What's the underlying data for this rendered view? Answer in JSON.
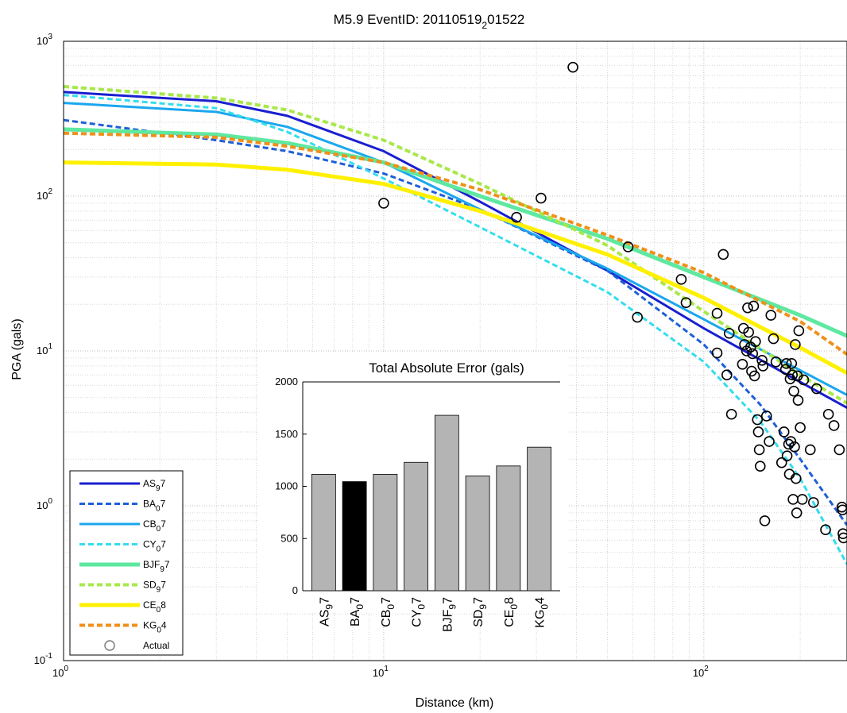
{
  "chart_data": [
    {
      "type": "line",
      "title": "M5.9 EventID: 20110519_2 01522",
      "title_main": "M5.9 EventID: 20110519",
      "title_sub": "2",
      "title_rest": "01522",
      "xlabel": "Distance (km)",
      "ylabel": "PGA (gals)",
      "xscale": "log",
      "yscale": "log",
      "xlim": [
        1,
        280
      ],
      "ylim": [
        0.1,
        1000
      ],
      "x_ticks": [
        {
          "base": "10",
          "exp": "0",
          "value": 1
        },
        {
          "base": "10",
          "exp": "1",
          "value": 10
        },
        {
          "base": "10",
          "exp": "2",
          "value": 100
        }
      ],
      "y_ticks": [
        {
          "base": "10",
          "exp": "-1",
          "value": 0.1
        },
        {
          "base": "10",
          "exp": "0",
          "value": 1
        },
        {
          "base": "10",
          "exp": "1",
          "value": 10
        },
        {
          "base": "10",
          "exp": "2",
          "value": 100
        },
        {
          "base": "10",
          "exp": "3",
          "value": 1000
        }
      ],
      "grid": true,
      "legend_position": "bottom-left",
      "series": [
        {
          "main": "AS",
          "sub": "9",
          "tail": "7",
          "color": "#1a1fd0",
          "dash": "solid",
          "width": 3,
          "x": [
            1,
            3,
            5,
            10,
            20,
            50,
            100,
            200,
            280
          ],
          "y": [
            470,
            410,
            330,
            195,
            92,
            33,
            14,
            6.3,
            4.3
          ]
        },
        {
          "main": "BA",
          "sub": "0",
          "tail": "7",
          "color": "#1e5fd8",
          "dash": "dash",
          "width": 3,
          "x": [
            1,
            3,
            5,
            10,
            20,
            50,
            100,
            150,
            200,
            280
          ],
          "y": [
            310,
            230,
            195,
            140,
            82,
            33,
            11,
            4.5,
            2.0,
            0.75
          ]
        },
        {
          "main": "CB",
          "sub": "0",
          "tail": "7",
          "color": "#1aa7ee",
          "dash": "solid",
          "width": 3,
          "x": [
            1,
            3,
            5,
            10,
            20,
            50,
            100,
            200,
            280
          ],
          "y": [
            400,
            350,
            280,
            165,
            82,
            34,
            16,
            7.5,
            5.2
          ]
        },
        {
          "main": "CY",
          "sub": "0",
          "tail": "7",
          "color": "#33ddee",
          "dash": "dash",
          "width": 3,
          "x": [
            1,
            3,
            5,
            10,
            20,
            50,
            100,
            150,
            200,
            280
          ],
          "y": [
            450,
            370,
            260,
            130,
            63,
            24,
            8.5,
            3.5,
            1.5,
            0.42
          ]
        },
        {
          "main": "BJF",
          "sub": "9",
          "tail": "7",
          "color": "#5ee8a0",
          "dash": "solid",
          "width": 5,
          "x": [
            1,
            3,
            5,
            10,
            20,
            50,
            100,
            200,
            280
          ],
          "y": [
            270,
            250,
            220,
            165,
            100,
            53,
            30,
            17,
            12.5
          ]
        },
        {
          "main": "SD",
          "sub": "9",
          "tail": "7",
          "color": "#a8e84a",
          "dash": "dash",
          "width": 4,
          "x": [
            1,
            3,
            5,
            10,
            20,
            50,
            100,
            200,
            280
          ],
          "y": [
            510,
            430,
            360,
            230,
            120,
            48,
            18,
            7.0,
            4.6
          ]
        },
        {
          "main": "CE",
          "sub": "0",
          "tail": "8",
          "color": "#fff000",
          "dash": "solid",
          "width": 5,
          "x": [
            1,
            3,
            5,
            10,
            20,
            50,
            100,
            200,
            280
          ],
          "y": [
            165,
            160,
            148,
            120,
            80,
            42,
            22,
            10.5,
            7.2
          ]
        },
        {
          "main": "KG",
          "sub": "0",
          "tail": "4",
          "color": "#f0901a",
          "dash": "dash",
          "width": 4,
          "x": [
            1,
            3,
            5,
            10,
            20,
            50,
            100,
            200,
            280
          ],
          "y": [
            255,
            240,
            210,
            165,
            110,
            56,
            32,
            15.5,
            9.5
          ]
        }
      ],
      "actual_label": "Actual",
      "actual_points": [
        [
          10.0,
          90
        ],
        [
          26,
          73
        ],
        [
          31,
          97
        ],
        [
          39,
          680
        ],
        [
          58,
          47
        ],
        [
          62,
          16.5
        ],
        [
          85,
          29
        ],
        [
          88,
          20.5
        ],
        [
          110,
          17.5
        ],
        [
          110,
          9.7
        ],
        [
          115,
          42
        ],
        [
          118,
          7
        ],
        [
          120,
          13
        ],
        [
          122,
          3.9
        ],
        [
          132,
          8.2
        ],
        [
          133,
          14
        ],
        [
          134,
          11
        ],
        [
          136,
          10
        ],
        [
          137,
          19
        ],
        [
          138,
          13.2
        ],
        [
          140,
          10.6
        ],
        [
          141,
          7.4
        ],
        [
          142,
          9.6
        ],
        [
          143,
          19.5
        ],
        [
          144,
          6.9
        ],
        [
          145,
          11.5
        ],
        [
          147,
          3.6
        ],
        [
          148,
          3.0
        ],
        [
          149,
          2.3
        ],
        [
          150,
          1.8
        ],
        [
          152,
          8.7
        ],
        [
          153,
          8.0
        ],
        [
          155,
          0.8
        ],
        [
          157,
          3.8
        ],
        [
          160,
          2.6
        ],
        [
          162,
          17
        ],
        [
          165,
          12
        ],
        [
          168,
          8.5
        ],
        [
          175,
          1.9
        ],
        [
          178,
          3.0
        ],
        [
          180,
          7.6
        ],
        [
          181,
          8.3
        ],
        [
          182,
          2.1
        ],
        [
          184,
          2.5
        ],
        [
          185,
          1.6
        ],
        [
          186,
          6.6
        ],
        [
          187,
          2.6
        ],
        [
          188,
          8.3
        ],
        [
          189,
          7.0
        ],
        [
          190,
          1.1
        ],
        [
          191,
          5.5
        ],
        [
          192,
          2.4
        ],
        [
          193,
          11
        ],
        [
          194,
          1.5
        ],
        [
          195,
          0.9
        ],
        [
          196,
          6.9
        ],
        [
          197,
          4.8
        ],
        [
          198,
          13.5
        ],
        [
          200,
          3.2
        ],
        [
          203,
          1.1
        ],
        [
          205,
          6.5
        ],
        [
          215,
          2.3
        ],
        [
          220,
          1.05
        ],
        [
          225,
          5.7
        ],
        [
          240,
          0.7
        ],
        [
          245,
          3.9
        ],
        [
          255,
          3.3
        ],
        [
          265,
          2.3
        ],
        [
          270,
          0.98
        ],
        [
          271,
          0.94
        ],
        [
          272,
          0.66
        ],
        [
          273,
          0.62
        ]
      ]
    },
    {
      "type": "bar",
      "title": "Total Absolute Error  (gals)",
      "ylim": [
        0,
        2000
      ],
      "y_ticks": [
        0,
        500,
        1000,
        1500,
        2000
      ],
      "categories": [
        {
          "main": "AS",
          "sub": "9",
          "tail": "7"
        },
        {
          "main": "BA",
          "sub": "0",
          "tail": "7"
        },
        {
          "main": "CB",
          "sub": "0",
          "tail": "7"
        },
        {
          "main": "CY",
          "sub": "0",
          "tail": "7"
        },
        {
          "main": "BJF",
          "sub": "9",
          "tail": "7"
        },
        {
          "main": "SD",
          "sub": "9",
          "tail": "7"
        },
        {
          "main": "CE",
          "sub": "0",
          "tail": "8"
        },
        {
          "main": "KG",
          "sub": "0",
          "tail": "4"
        }
      ],
      "values": [
        1115,
        1045,
        1115,
        1230,
        1680,
        1100,
        1195,
        1375
      ],
      "highlight_index": 1,
      "bar_color": "#b4b4b4",
      "highlight_color": "#000000"
    }
  ]
}
